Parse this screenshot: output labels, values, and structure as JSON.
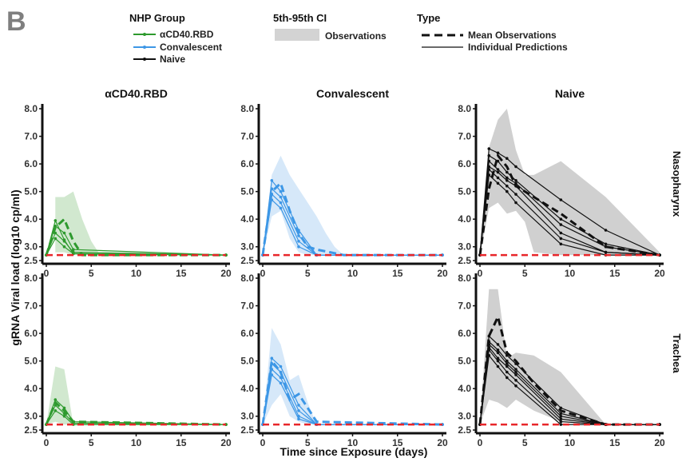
{
  "panel_letter": "B",
  "legend": {
    "group": {
      "title": "NHP Group",
      "items": [
        {
          "label": "αCD40.RBD",
          "color": "#2e9a2e"
        },
        {
          "label": "Convalescent",
          "color": "#3d97e6"
        },
        {
          "label": "Naive",
          "color": "#111111"
        }
      ]
    },
    "ci": {
      "title": "5th-95th CI",
      "items": [
        {
          "label": "Observations",
          "color": "#d3d3d3"
        }
      ]
    },
    "type": {
      "title": "Type",
      "items": [
        {
          "label": "Mean Observations",
          "style": "dashed"
        },
        {
          "label": "Individual Predictions",
          "style": "solid"
        }
      ]
    }
  },
  "chart_data": {
    "type": "line",
    "xlabel": "Time since Exposure (days)",
    "ylabel": "gRNA Viral load (log10 cp/ml)",
    "xlim": [
      0,
      20
    ],
    "ylim": [
      2.5,
      8.0
    ],
    "x_ticks": [
      0,
      5,
      10,
      15,
      20
    ],
    "y_ticks": [
      2.5,
      3.0,
      4.0,
      5.0,
      6.0,
      7.0,
      8.0
    ],
    "y_tick_labels": [
      "2.5",
      "3.0",
      "4.0",
      "5.0",
      "6.0",
      "7.0",
      "8.0"
    ],
    "lloq": 2.7,
    "lloq_color": "#e8262a",
    "columns": [
      "αCD40.RBD",
      "Convalescent",
      "Naive"
    ],
    "rows": [
      "Nasopharynx",
      "Trachea"
    ],
    "panels": [
      {
        "column": "αCD40.RBD",
        "row": "Nasopharynx",
        "color": "#2e9a2e",
        "band_color": "#c9e4c7",
        "ci_band": {
          "x": [
            1,
            2,
            3,
            4,
            5,
            6
          ],
          "lower": [
            2.8,
            2.8,
            2.7,
            2.7,
            2.7,
            2.7
          ],
          "upper": [
            4.8,
            4.8,
            5.0,
            4.0,
            3.2,
            2.7
          ]
        },
        "mean_observations": {
          "x": [
            0,
            1,
            2,
            3,
            4,
            20
          ],
          "y": [
            2.7,
            3.7,
            4.0,
            3.2,
            2.7,
            2.7
          ]
        },
        "individual_predictions": [
          {
            "x": [
              0,
              1,
              2,
              3,
              20
            ],
            "y": [
              2.7,
              3.95,
              3.25,
              2.75,
              2.7
            ]
          },
          {
            "x": [
              0,
              1,
              2,
              3,
              20
            ],
            "y": [
              2.7,
              3.75,
              3.5,
              2.9,
              2.7
            ]
          },
          {
            "x": [
              0,
              1,
              2,
              3,
              20
            ],
            "y": [
              2.7,
              3.5,
              3.2,
              2.8,
              2.7
            ]
          },
          {
            "x": [
              0,
              1,
              2,
              3,
              20
            ],
            "y": [
              2.7,
              3.3,
              3.0,
              2.75,
              2.7
            ]
          }
        ]
      },
      {
        "column": "Convalescent",
        "row": "Nasopharynx",
        "color": "#3d97e6",
        "band_color": "#cfe4f8",
        "ci_band": {
          "x": [
            0,
            1,
            2,
            3,
            4,
            5,
            6,
            7,
            8,
            9
          ],
          "lower": [
            2.7,
            4.1,
            4.3,
            3.3,
            2.8,
            2.7,
            2.7,
            2.7,
            2.7,
            2.7
          ],
          "upper": [
            2.7,
            5.6,
            6.3,
            5.6,
            5.1,
            4.6,
            4.1,
            3.5,
            3.0,
            2.7
          ]
        },
        "mean_observations": {
          "x": [
            0,
            1,
            2,
            3,
            4,
            5,
            6,
            9,
            20
          ],
          "y": [
            2.7,
            5.0,
            5.3,
            4.3,
            3.5,
            3.0,
            2.9,
            2.7,
            2.7
          ]
        },
        "individual_predictions": [
          {
            "x": [
              0,
              1,
              2,
              4,
              6,
              20
            ],
            "y": [
              2.7,
              5.4,
              5.0,
              3.6,
              2.7,
              2.7
            ]
          },
          {
            "x": [
              0,
              1,
              2,
              4,
              6,
              20
            ],
            "y": [
              2.7,
              5.1,
              4.8,
              3.4,
              2.7,
              2.7
            ]
          },
          {
            "x": [
              0,
              1,
              2,
              4,
              6,
              20
            ],
            "y": [
              2.7,
              4.9,
              4.6,
              3.2,
              2.7,
              2.7
            ]
          },
          {
            "x": [
              0,
              1,
              2,
              4,
              6,
              20
            ],
            "y": [
              2.7,
              4.7,
              4.4,
              3.0,
              2.7,
              2.7
            ]
          }
        ]
      },
      {
        "column": "Naive",
        "row": "Nasopharynx",
        "color": "#111111",
        "band_color": "#c8c8c8",
        "ci_band": {
          "x": [
            0,
            1,
            2,
            3,
            4,
            5,
            6,
            9,
            14,
            20
          ],
          "lower": [
            2.7,
            4.4,
            4.6,
            4.2,
            4.3,
            3.9,
            2.8,
            2.7,
            2.7,
            2.7
          ],
          "upper": [
            2.7,
            6.6,
            7.6,
            8.0,
            6.5,
            5.6,
            5.6,
            6.1,
            4.8,
            2.8
          ]
        },
        "mean_observations": {
          "x": [
            0,
            1,
            2,
            3,
            4,
            6,
            9,
            14,
            20
          ],
          "y": [
            2.7,
            5.1,
            6.3,
            5.9,
            5.2,
            4.8,
            4.2,
            3.0,
            2.7
          ]
        },
        "individual_predictions": [
          {
            "x": [
              0,
              1,
              2,
              3,
              4,
              9,
              14,
              20
            ],
            "y": [
              2.7,
              6.55,
              6.4,
              6.2,
              5.9,
              4.7,
              3.6,
              2.7
            ]
          },
          {
            "x": [
              0,
              1,
              2,
              3,
              4,
              9,
              14,
              20
            ],
            "y": [
              2.7,
              6.3,
              6.1,
              5.7,
              5.4,
              4.0,
              3.1,
              2.7
            ]
          },
          {
            "x": [
              0,
              1,
              2,
              3,
              4,
              9,
              14,
              20
            ],
            "y": [
              2.7,
              6.1,
              5.8,
              5.5,
              5.3,
              3.8,
              3.0,
              2.7
            ]
          },
          {
            "x": [
              0,
              1,
              2,
              3,
              4,
              9,
              14,
              20
            ],
            "y": [
              2.7,
              5.9,
              5.7,
              5.4,
              5.2,
              3.5,
              2.8,
              2.7
            ]
          },
          {
            "x": [
              0,
              1,
              2,
              3,
              4,
              9,
              14,
              20
            ],
            "y": [
              2.7,
              5.8,
              5.5,
              5.2,
              4.9,
              3.3,
              2.8,
              2.7
            ]
          },
          {
            "x": [
              0,
              1,
              2,
              3,
              4,
              9,
              14,
              20
            ],
            "y": [
              2.7,
              5.6,
              5.3,
              5.0,
              4.6,
              3.1,
              2.7,
              2.7
            ]
          }
        ]
      },
      {
        "column": "αCD40.RBD",
        "row": "Trachea",
        "color": "#2e9a2e",
        "band_color": "#c9e4c7",
        "ci_band": {
          "x": [
            0,
            1,
            2,
            3
          ],
          "lower": [
            2.7,
            2.8,
            2.7,
            2.7
          ],
          "upper": [
            2.7,
            4.8,
            4.7,
            2.7
          ]
        },
        "mean_observations": {
          "x": [
            0,
            1,
            2,
            3,
            20
          ],
          "y": [
            2.7,
            3.5,
            3.2,
            2.8,
            2.7
          ]
        },
        "individual_predictions": [
          {
            "x": [
              0,
              1,
              2,
              3,
              20
            ],
            "y": [
              2.7,
              3.6,
              3.3,
              2.8,
              2.7
            ]
          },
          {
            "x": [
              0,
              1,
              2,
              3,
              20
            ],
            "y": [
              2.7,
              3.4,
              3.1,
              2.75,
              2.7
            ]
          },
          {
            "x": [
              0,
              1,
              2,
              3,
              20
            ],
            "y": [
              2.7,
              3.2,
              3.0,
              2.7,
              2.7
            ]
          }
        ]
      },
      {
        "column": "Convalescent",
        "row": "Trachea",
        "color": "#3d97e6",
        "band_color": "#cfe4f8",
        "ci_band": {
          "x": [
            0,
            1,
            2,
            3,
            4,
            5,
            6
          ],
          "lower": [
            2.7,
            3.4,
            3.8,
            3.0,
            2.8,
            2.7,
            2.7
          ],
          "upper": [
            2.7,
            6.2,
            5.6,
            4.3,
            4.5,
            3.5,
            2.7
          ]
        },
        "mean_observations": {
          "x": [
            0,
            1,
            2,
            3,
            4,
            6,
            20
          ],
          "y": [
            2.7,
            5.0,
            4.6,
            3.6,
            3.8,
            2.8,
            2.7
          ]
        },
        "individual_predictions": [
          {
            "x": [
              0,
              1,
              2,
              4,
              6,
              20
            ],
            "y": [
              2.7,
              5.1,
              4.8,
              3.4,
              2.7,
              2.7
            ]
          },
          {
            "x": [
              0,
              1,
              2,
              4,
              6,
              20
            ],
            "y": [
              2.7,
              4.9,
              4.6,
              3.2,
              2.7,
              2.7
            ]
          },
          {
            "x": [
              0,
              1,
              2,
              4,
              6,
              20
            ],
            "y": [
              2.7,
              4.7,
              4.4,
              3.0,
              2.7,
              2.7
            ]
          },
          {
            "x": [
              0,
              1,
              2,
              4,
              6,
              20
            ],
            "y": [
              2.7,
              4.5,
              4.2,
              2.9,
              2.7,
              2.7
            ]
          }
        ]
      },
      {
        "column": "Naive",
        "row": "Trachea",
        "color": "#111111",
        "band_color": "#c8c8c8",
        "ci_band": {
          "x": [
            0,
            1,
            2,
            3,
            4,
            6,
            9,
            14
          ],
          "lower": [
            2.7,
            3.6,
            3.5,
            3.3,
            3.6,
            3.2,
            2.8,
            2.7
          ],
          "upper": [
            2.7,
            7.6,
            7.6,
            5.1,
            5.3,
            5.2,
            4.6,
            2.7
          ]
        },
        "mean_observations": {
          "x": [
            0,
            1,
            2,
            3,
            4,
            6,
            9,
            14,
            20
          ],
          "y": [
            2.7,
            5.9,
            6.6,
            5.3,
            5.0,
            4.2,
            3.2,
            2.7,
            2.7
          ]
        },
        "individual_predictions": [
          {
            "x": [
              0,
              1,
              2,
              3,
              4,
              9,
              14,
              20
            ],
            "y": [
              2.7,
              5.9,
              5.6,
              5.2,
              4.9,
              3.3,
              2.7,
              2.7
            ]
          },
          {
            "x": [
              0,
              1,
              2,
              3,
              4,
              9,
              14,
              20
            ],
            "y": [
              2.7,
              5.7,
              5.4,
              5.0,
              4.7,
              3.1,
              2.7,
              2.7
            ]
          },
          {
            "x": [
              0,
              1,
              2,
              3,
              4,
              9,
              14,
              20
            ],
            "y": [
              2.7,
              5.6,
              5.3,
              4.9,
              4.6,
              3.0,
              2.7,
              2.7
            ]
          },
          {
            "x": [
              0,
              1,
              2,
              3,
              4,
              9,
              14,
              20
            ],
            "y": [
              2.7,
              5.5,
              5.1,
              4.8,
              4.5,
              2.9,
              2.7,
              2.7
            ]
          },
          {
            "x": [
              0,
              1,
              2,
              3,
              4,
              9,
              14,
              20
            ],
            "y": [
              2.7,
              5.4,
              5.0,
              4.6,
              4.3,
              2.8,
              2.7,
              2.7
            ]
          },
          {
            "x": [
              0,
              1,
              2,
              3,
              4,
              9,
              14,
              20
            ],
            "y": [
              2.7,
              5.2,
              4.8,
              4.4,
              4.1,
              2.7,
              2.7,
              2.7
            ]
          }
        ]
      }
    ]
  }
}
